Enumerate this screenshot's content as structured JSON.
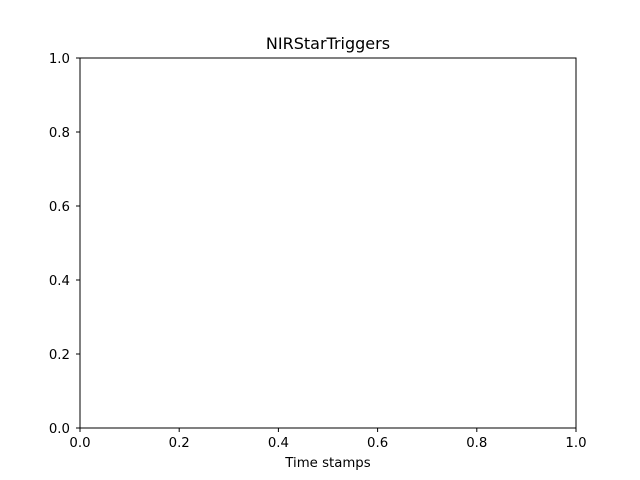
{
  "chart_data": {
    "type": "line",
    "title": "NIRStarTriggers",
    "xlabel": "Time stamps",
    "ylabel": "",
    "xlim": [
      0.0,
      1.0
    ],
    "ylim": [
      0.0,
      1.0
    ],
    "x_ticks": [
      "0.0",
      "0.2",
      "0.4",
      "0.6",
      "0.8",
      "1.0"
    ],
    "y_ticks": [
      "0.0",
      "0.2",
      "0.4",
      "0.6",
      "0.8",
      "1.0"
    ],
    "series": [],
    "grid": false,
    "legend": "none",
    "colors": {
      "axes": "#000000",
      "background": "#ffffff"
    }
  }
}
